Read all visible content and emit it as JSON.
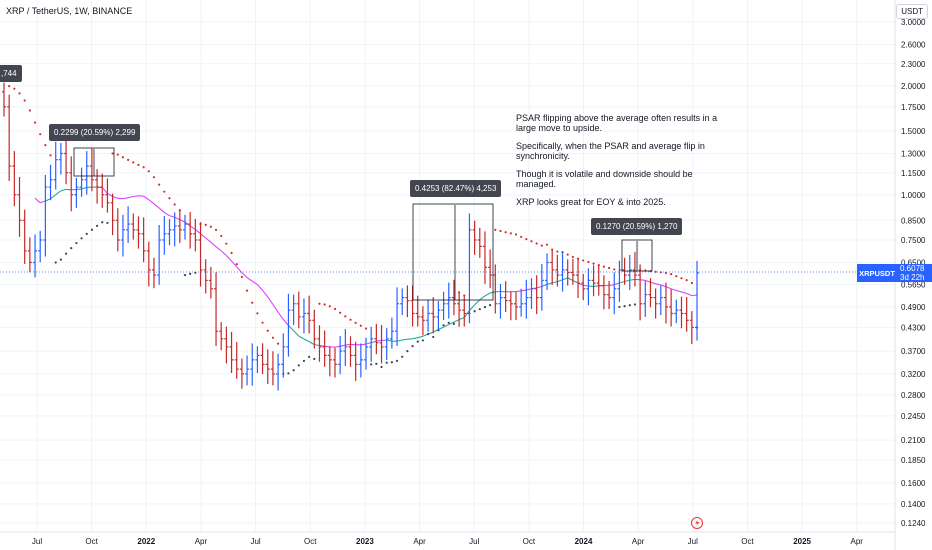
{
  "header": {
    "symbol_title": "XRP / TetherUS, 1W, BINANCE",
    "currency": "USDT"
  },
  "annotations": [
    "PSAR flipping above the average often results in a",
    "large move to upside.",
    "",
    "Specifically, when the PSAR and average flip in",
    "synchronicity.",
    "",
    "Though it is volatile and downside should be",
    "managed.",
    "",
    "XRP looks great for EOY & into 2025."
  ],
  "callouts": {
    "top_left": ",744",
    "c1": "0.2299 (20.59%) 2,299",
    "c2": "0.4253 (82.47%) 4,253",
    "c3": "0.1270 (20.59%) 1,270"
  },
  "price_tag": {
    "symbol": "XRPUSDT",
    "price": "0.6078",
    "countdown": "3d 22h"
  },
  "colors": {
    "up": "#2962ff",
    "down": "#c62828",
    "psar": "#d32f2f",
    "avg_up": "#26a69a",
    "avg_down": "#e040fb",
    "grid": "#f0f3fa",
    "tag": "#2962ff"
  },
  "chart_data": {
    "type": "candlestick",
    "scale": "log",
    "y_axis_ticks": [
      0.124,
      0.14,
      0.16,
      0.185,
      0.21,
      0.245,
      0.28,
      0.32,
      0.37,
      0.43,
      0.49,
      0.565,
      0.65,
      0.75,
      0.85,
      1.0,
      1.15,
      1.3,
      1.5,
      1.75,
      2.0,
      2.3,
      2.6,
      3.0
    ],
    "y_axis_labels": [
      "0.1240",
      "0.1400",
      "0.1600",
      "0.1850",
      "0.2100",
      "0.2450",
      "0.2800",
      "0.3200",
      "0.3700",
      "0.4300",
      "0.4900",
      "0.5650",
      "0.6500",
      "0.7500",
      "0.8500",
      "1.0000",
      "1.1500",
      "1.3000",
      "1.5000",
      "1.7500",
      "2.0000",
      "2.3000",
      "2.6000",
      "3.0000"
    ],
    "x_axis_labels": [
      {
        "label": "Jul",
        "t": 0.0
      },
      {
        "label": "Oct",
        "t": 0.25
      },
      {
        "label": "2022",
        "t": 0.5
      },
      {
        "label": "Apr",
        "t": 0.75
      },
      {
        "label": "Jul",
        "t": 1.0
      },
      {
        "label": "Oct",
        "t": 1.25
      },
      {
        "label": "2023",
        "t": 1.5
      },
      {
        "label": "Apr",
        "t": 1.75
      },
      {
        "label": "Jul",
        "t": 2.0
      },
      {
        "label": "Oct",
        "t": 2.25
      },
      {
        "label": "2024",
        "t": 2.5
      },
      {
        "label": "Apr",
        "t": 2.75
      },
      {
        "label": "Jul",
        "t": 3.0
      },
      {
        "label": "Oct",
        "t": 3.25
      },
      {
        "label": "2025",
        "t": 3.5
      },
      {
        "label": "Apr",
        "t": 3.75
      }
    ],
    "weekly_closes": [
      1.75,
      1.2,
      1.0,
      0.85,
      0.7,
      0.65,
      0.7,
      0.75,
      1.05,
      1.1,
      1.25,
      1.3,
      1.15,
      1.0,
      1.05,
      1.1,
      1.2,
      1.1,
      1.05,
      1.0,
      0.95,
      0.85,
      0.75,
      0.8,
      0.83,
      0.8,
      0.78,
      0.7,
      0.62,
      0.6,
      0.75,
      0.78,
      0.8,
      0.82,
      0.8,
      0.83,
      0.78,
      0.75,
      0.62,
      0.58,
      0.55,
      0.42,
      0.4,
      0.38,
      0.35,
      0.33,
      0.32,
      0.33,
      0.35,
      0.36,
      0.34,
      0.33,
      0.32,
      0.34,
      0.38,
      0.48,
      0.5,
      0.46,
      0.47,
      0.45,
      0.4,
      0.38,
      0.36,
      0.35,
      0.34,
      0.37,
      0.38,
      0.36,
      0.34,
      0.35,
      0.38,
      0.4,
      0.39,
      0.38,
      0.4,
      0.42,
      0.5,
      0.52,
      0.51,
      0.47,
      0.46,
      0.45,
      0.47,
      0.46,
      0.48,
      0.5,
      0.52,
      0.5,
      0.48,
      0.47,
      0.8,
      0.75,
      0.72,
      0.63,
      0.6,
      0.5,
      0.52,
      0.51,
      0.5,
      0.49,
      0.5,
      0.52,
      0.55,
      0.52,
      0.58,
      0.65,
      0.62,
      0.6,
      0.62,
      0.61,
      0.6,
      0.57,
      0.55,
      0.58,
      0.57,
      0.56,
      0.53,
      0.52,
      0.55,
      0.62,
      0.6,
      0.62,
      0.6,
      0.5,
      0.53,
      0.52,
      0.5,
      0.52,
      0.49,
      0.47,
      0.48,
      0.47,
      0.45,
      0.43,
      0.6078
    ]
  }
}
